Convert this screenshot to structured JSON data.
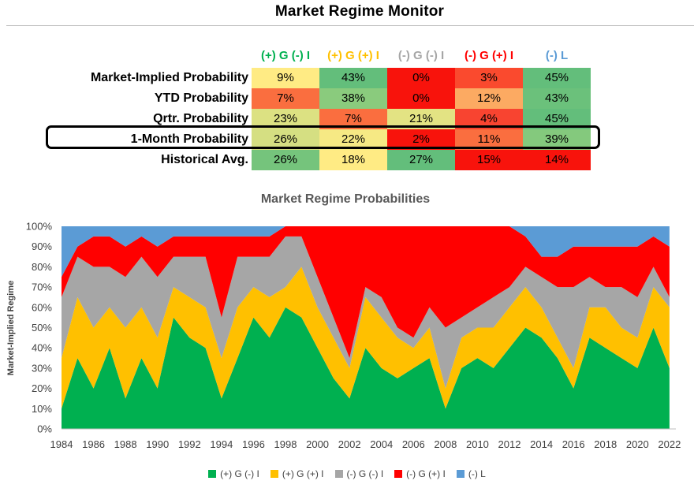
{
  "title": "Market Regime Monitor",
  "table": {
    "columns": [
      {
        "label": "(+) G (-) I",
        "color": "#00B050"
      },
      {
        "label": "(+) G (+) I",
        "color": "#FFC000"
      },
      {
        "label": "(-) G (-) I",
        "color": "#A6A6A6"
      },
      {
        "label": "(-) G (+) I",
        "color": "#FF0000"
      },
      {
        "label": "(-) L",
        "color": "#5B9BD5"
      }
    ],
    "rows": [
      {
        "label": "Market-Implied Probability",
        "values": [
          "9%",
          "43%",
          "0%",
          "3%",
          "45%"
        ],
        "colors": [
          "#FFEB84",
          "#63BE7B",
          "#F8130C",
          "#FA4A2E",
          "#63BE7B"
        ]
      },
      {
        "label": "YTD Probability",
        "values": [
          "7%",
          "38%",
          "0%",
          "12%",
          "43%"
        ],
        "colors": [
          "#FA6E3F",
          "#8ACB7D",
          "#F8130C",
          "#FCAA62",
          "#6BC17B"
        ]
      },
      {
        "label": "Qrtr. Probability",
        "values": [
          "23%",
          "7%",
          "21%",
          "4%",
          "45%"
        ],
        "colors": [
          "#DCE182",
          "#FA6E3F",
          "#E3E383",
          "#F84430",
          "#63BE7B"
        ]
      },
      {
        "label": "1-Month Probability",
        "values": [
          "26%",
          "22%",
          "2%",
          "11%",
          "39%"
        ],
        "colors": [
          "#D5DF82",
          "#F6E984",
          "#F8130C",
          "#FA6E3F",
          "#84C97D"
        ]
      },
      {
        "label": "Historical Avg.",
        "values": [
          "26%",
          "18%",
          "27%",
          "15%",
          "14%"
        ],
        "colors": [
          "#75C47C",
          "#FFEB84",
          "#63BE7B",
          "#F8130C",
          "#F8130C"
        ]
      }
    ]
  },
  "chart_data": {
    "type": "area",
    "title": "Market Regime Probabilities",
    "ylabel": "Market-Implied Regime",
    "ylim": [
      0,
      100
    ],
    "yticks": [
      "0%",
      "10%",
      "20%",
      "30%",
      "40%",
      "50%",
      "60%",
      "70%",
      "80%",
      "90%",
      "100%"
    ],
    "xlim": [
      1984,
      2022.4
    ],
    "xticks": [
      "1984",
      "1986",
      "1988",
      "1990",
      "1992",
      "1994",
      "1996",
      "1998",
      "2000",
      "2002",
      "2004",
      "2006",
      "2008",
      "2010",
      "2012",
      "2014",
      "2016",
      "2018",
      "2020",
      "2022"
    ],
    "stacked_percent": true,
    "x": [
      1984,
      1985,
      1986,
      1987,
      1988,
      1989,
      1990,
      1991,
      1992,
      1993,
      1994,
      1995,
      1996,
      1997,
      1998,
      1999,
      2000,
      2001,
      2002,
      2003,
      2004,
      2005,
      2006,
      2007,
      2008,
      2009,
      2010,
      2011,
      2012,
      2013,
      2014,
      2015,
      2016,
      2017,
      2018,
      2019,
      2020,
      2021,
      2022
    ],
    "series": [
      {
        "name": "(+) G (-) I",
        "color": "#00B050",
        "values": [
          10,
          35,
          20,
          40,
          15,
          35,
          20,
          55,
          45,
          40,
          15,
          35,
          55,
          45,
          60,
          55,
          40,
          25,
          15,
          40,
          30,
          25,
          30,
          35,
          10,
          30,
          35,
          30,
          40,
          50,
          45,
          35,
          20,
          45,
          40,
          35,
          30,
          50,
          30
        ]
      },
      {
        "name": "(+) G (+) I",
        "color": "#FFC000",
        "values": [
          25,
          30,
          30,
          20,
          35,
          25,
          25,
          15,
          20,
          20,
          20,
          25,
          15,
          20,
          10,
          25,
          20,
          20,
          15,
          25,
          25,
          20,
          10,
          15,
          10,
          15,
          15,
          20,
          20,
          20,
          15,
          10,
          10,
          15,
          20,
          15,
          15,
          20,
          30
        ]
      },
      {
        "name": "(-) G (-) I",
        "color": "#A6A6A6",
        "values": [
          30,
          20,
          30,
          20,
          25,
          25,
          30,
          15,
          20,
          25,
          20,
          25,
          15,
          20,
          25,
          15,
          15,
          10,
          5,
          5,
          10,
          5,
          5,
          10,
          30,
          10,
          10,
          15,
          10,
          10,
          15,
          25,
          40,
          15,
          10,
          20,
          20,
          10,
          5
        ]
      },
      {
        "name": "(-) G (+) I",
        "color": "#FF0000",
        "values": [
          10,
          5,
          15,
          15,
          15,
          10,
          15,
          10,
          10,
          10,
          40,
          10,
          10,
          10,
          5,
          5,
          25,
          45,
          65,
          30,
          35,
          50,
          55,
          40,
          50,
          45,
          40,
          35,
          30,
          15,
          10,
          15,
          20,
          15,
          20,
          20,
          25,
          15,
          25
        ]
      },
      {
        "name": "(-) L",
        "color": "#5B9BD5",
        "values": [
          25,
          10,
          5,
          5,
          10,
          5,
          10,
          5,
          5,
          5,
          5,
          5,
          5,
          5,
          0,
          0,
          0,
          0,
          0,
          0,
          0,
          0,
          0,
          0,
          0,
          0,
          0,
          0,
          0,
          5,
          15,
          15,
          10,
          10,
          10,
          10,
          10,
          5,
          10
        ]
      }
    ]
  }
}
